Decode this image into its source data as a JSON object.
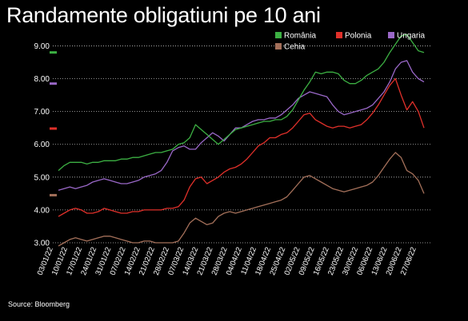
{
  "title": "Randamente obligatiuni pe 10 ani",
  "source": "Source: Bloomberg",
  "chart_data": {
    "type": "line",
    "ylim": [
      3.0,
      9.4
    ],
    "yticks": [
      "3.00",
      "4.00",
      "5.00",
      "6.00",
      "7.00",
      "8.00",
      "9.00"
    ],
    "grid": "horizontal dotted",
    "legend_position": "top-right",
    "xticks": [
      "03/01/22",
      "17/01/22",
      "31/01/22",
      "14/02/22",
      "28/02/22",
      "14/03/22",
      "28/03/22",
      "11/04/22",
      "25/04/22",
      "09/05/22",
      "23/05/22",
      "06/06/22",
      "20/06/22"
    ],
    "xticks_secondary": [
      "10/01/22",
      "24/01/22",
      "07/02/22",
      "21/02/22",
      "07/03/22",
      "21/03/22",
      "04/04/22",
      "18/04/22",
      "02/05/22",
      "16/05/22",
      "30/05/22",
      "13/06/22",
      "27/06/22"
    ],
    "markers": [
      {
        "series": "România",
        "value": 8.8
      },
      {
        "series": "Ungaria",
        "value": 7.85
      },
      {
        "series": "Polonia",
        "value": 6.48
      },
      {
        "series": "Cehia",
        "value": 4.45
      }
    ],
    "series": [
      {
        "name": "România",
        "color": "#3cb043",
        "values": [
          5.2,
          5.35,
          5.45,
          5.45,
          5.45,
          5.4,
          5.45,
          5.45,
          5.5,
          5.5,
          5.5,
          5.55,
          5.55,
          5.6,
          5.6,
          5.65,
          5.7,
          5.75,
          5.75,
          5.8,
          5.85,
          6.0,
          6.05,
          6.2,
          6.6,
          6.45,
          6.3,
          6.15,
          6.0,
          6.15,
          6.3,
          6.45,
          6.5,
          6.55,
          6.6,
          6.65,
          6.7,
          6.7,
          6.75,
          6.75,
          6.85,
          7.05,
          7.35,
          7.65,
          7.9,
          8.2,
          8.15,
          8.2,
          8.2,
          8.15,
          7.95,
          7.85,
          7.85,
          7.95,
          8.1,
          8.2,
          8.3,
          8.5,
          8.8,
          9.05,
          9.3,
          9.35,
          9.1,
          8.85,
          8.8
        ]
      },
      {
        "name": "Polonia",
        "color": "#e0302a",
        "values": [
          3.8,
          3.9,
          4.0,
          4.05,
          4.0,
          3.9,
          3.9,
          3.95,
          4.05,
          4.0,
          3.95,
          3.9,
          3.9,
          3.95,
          3.95,
          4.0,
          4.0,
          4.0,
          4.0,
          4.05,
          4.05,
          4.1,
          4.3,
          4.7,
          4.95,
          5.0,
          4.8,
          4.9,
          5.0,
          5.15,
          5.25,
          5.3,
          5.4,
          5.55,
          5.75,
          5.95,
          6.05,
          6.2,
          6.2,
          6.3,
          6.35,
          6.5,
          6.7,
          6.9,
          6.95,
          6.75,
          6.65,
          6.55,
          6.5,
          6.55,
          6.55,
          6.5,
          6.55,
          6.6,
          6.75,
          6.95,
          7.2,
          7.5,
          7.8,
          8.0,
          7.5,
          7.05,
          7.3,
          7.0,
          6.5
        ]
      },
      {
        "name": "Ungaria",
        "color": "#9a68c8",
        "values": [
          4.6,
          4.65,
          4.7,
          4.65,
          4.7,
          4.75,
          4.85,
          4.9,
          4.95,
          4.9,
          4.85,
          4.8,
          4.8,
          4.85,
          4.9,
          5.0,
          5.05,
          5.1,
          5.2,
          5.45,
          5.8,
          5.9,
          5.95,
          5.85,
          5.85,
          6.05,
          6.2,
          6.35,
          6.25,
          6.1,
          6.3,
          6.5,
          6.5,
          6.6,
          6.7,
          6.75,
          6.75,
          6.8,
          6.8,
          6.9,
          7.05,
          7.2,
          7.4,
          7.5,
          7.6,
          7.55,
          7.5,
          7.45,
          7.2,
          7.0,
          6.9,
          6.95,
          7.0,
          7.05,
          7.1,
          7.2,
          7.4,
          7.6,
          7.9,
          8.3,
          8.5,
          8.55,
          8.2,
          8.0,
          7.9
        ]
      },
      {
        "name": "Cehia",
        "color": "#a4705a",
        "values": [
          2.9,
          3.0,
          3.1,
          3.15,
          3.1,
          3.05,
          3.1,
          3.15,
          3.2,
          3.2,
          3.15,
          3.1,
          3.05,
          3.0,
          3.0,
          3.05,
          3.05,
          3.0,
          3.0,
          3.0,
          3.0,
          3.05,
          3.3,
          3.6,
          3.75,
          3.65,
          3.55,
          3.6,
          3.8,
          3.9,
          3.95,
          3.9,
          3.95,
          4.0,
          4.05,
          4.1,
          4.15,
          4.2,
          4.25,
          4.3,
          4.4,
          4.6,
          4.8,
          5.0,
          5.05,
          4.95,
          4.85,
          4.75,
          4.65,
          4.6,
          4.55,
          4.6,
          4.65,
          4.7,
          4.75,
          4.85,
          5.05,
          5.3,
          5.55,
          5.75,
          5.6,
          5.2,
          5.1,
          4.9,
          4.5
        ]
      }
    ]
  }
}
